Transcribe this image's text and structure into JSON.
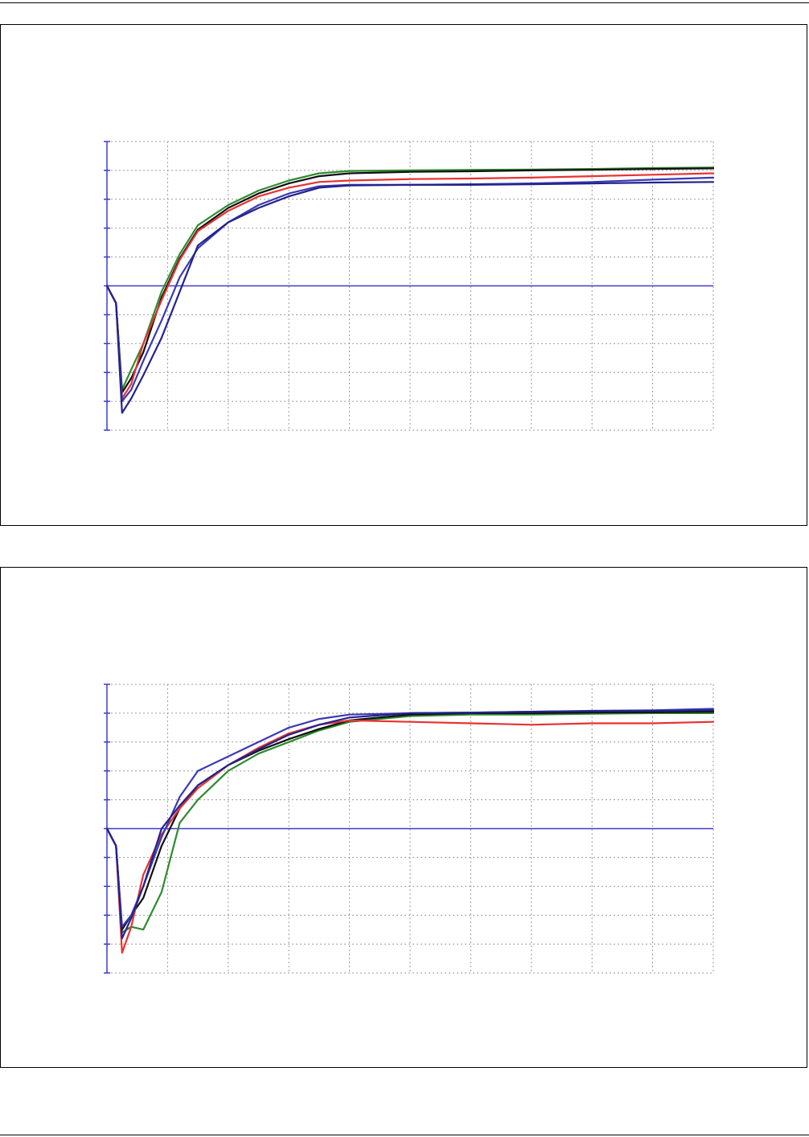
{
  "colors": {
    "blue": "#3a3ab4",
    "dark_blue": "#23238c",
    "red": "#e83232",
    "green": "#2e8b2e",
    "black": "#101010",
    "grid": "#9a9a9a",
    "axis": "#3c3ccc"
  },
  "chart_data": [
    {
      "type": "line",
      "title": "",
      "xlabel": "",
      "ylabel": "",
      "x_range": [
        0,
        10
      ],
      "y_range": [
        -5,
        5
      ],
      "zero_line": 0,
      "grid": true,
      "x_grid_lines": 10,
      "y_grid_lines": 10,
      "tick_labels": [],
      "series": [
        {
          "color": "green",
          "points": [
            [
              0,
              0
            ],
            [
              0.15,
              -0.6
            ],
            [
              0.25,
              -3.6
            ],
            [
              0.4,
              -2.9
            ],
            [
              0.6,
              -2.0
            ],
            [
              0.9,
              -0.2
            ],
            [
              1.2,
              1.1
            ],
            [
              1.5,
              2.1
            ],
            [
              2,
              2.8
            ],
            [
              2.5,
              3.3
            ],
            [
              3,
              3.65
            ],
            [
              3.5,
              3.9
            ],
            [
              4,
              3.98
            ],
            [
              5,
              4.0
            ],
            [
              6,
              4.02
            ],
            [
              7,
              4.03
            ],
            [
              8,
              4.05
            ],
            [
              9,
              4.08
            ],
            [
              10,
              4.1
            ]
          ]
        },
        {
          "color": "black",
          "points": [
            [
              0,
              0
            ],
            [
              0.15,
              -0.6
            ],
            [
              0.25,
              -3.7
            ],
            [
              0.4,
              -3.2
            ],
            [
              0.6,
              -2.3
            ],
            [
              0.9,
              -0.4
            ],
            [
              1.2,
              0.95
            ],
            [
              1.5,
              1.95
            ],
            [
              2,
              2.7
            ],
            [
              2.5,
              3.2
            ],
            [
              3,
              3.55
            ],
            [
              3.5,
              3.8
            ],
            [
              4,
              3.9
            ],
            [
              5,
              3.95
            ],
            [
              6,
              3.97
            ],
            [
              7,
              4.0
            ],
            [
              8,
              4.02
            ],
            [
              9,
              4.05
            ],
            [
              10,
              4.07
            ]
          ]
        },
        {
          "color": "red",
          "points": [
            [
              0,
              0
            ],
            [
              0.15,
              -0.6
            ],
            [
              0.25,
              -3.9
            ],
            [
              0.4,
              -3.4
            ],
            [
              0.6,
              -2.0
            ],
            [
              0.9,
              -0.5
            ],
            [
              1.2,
              0.9
            ],
            [
              1.5,
              1.9
            ],
            [
              2,
              2.6
            ],
            [
              2.5,
              3.1
            ],
            [
              3,
              3.4
            ],
            [
              3.5,
              3.6
            ],
            [
              4,
              3.65
            ],
            [
              5,
              3.7
            ],
            [
              6,
              3.72
            ],
            [
              7,
              3.75
            ],
            [
              8,
              3.8
            ],
            [
              9,
              3.85
            ],
            [
              10,
              3.9
            ]
          ]
        },
        {
          "color": "blue",
          "points": [
            [
              0,
              0
            ],
            [
              0.15,
              -0.6
            ],
            [
              0.25,
              -4.0
            ],
            [
              0.4,
              -3.6
            ],
            [
              0.6,
              -2.6
            ],
            [
              0.9,
              -1.2
            ],
            [
              1.2,
              0.3
            ],
            [
              1.5,
              1.3
            ],
            [
              2,
              2.2
            ],
            [
              2.5,
              2.8
            ],
            [
              3,
              3.2
            ],
            [
              3.5,
              3.45
            ],
            [
              4,
              3.5
            ],
            [
              5,
              3.5
            ],
            [
              6,
              3.52
            ],
            [
              7,
              3.55
            ],
            [
              8,
              3.6
            ],
            [
              9,
              3.68
            ],
            [
              10,
              3.75
            ]
          ]
        },
        {
          "color": "dark_blue",
          "points": [
            [
              0,
              0
            ],
            [
              0.15,
              -0.6
            ],
            [
              0.25,
              -4.4
            ],
            [
              0.4,
              -3.9
            ],
            [
              0.6,
              -3.1
            ],
            [
              0.9,
              -1.8
            ],
            [
              1.2,
              -0.2
            ],
            [
              1.5,
              1.4
            ],
            [
              2,
              2.2
            ],
            [
              2.5,
              2.7
            ],
            [
              3,
              3.1
            ],
            [
              3.5,
              3.4
            ],
            [
              4,
              3.48
            ],
            [
              5,
              3.5
            ],
            [
              6,
              3.5
            ],
            [
              7,
              3.52
            ],
            [
              8,
              3.55
            ],
            [
              9,
              3.58
            ],
            [
              10,
              3.6
            ]
          ]
        }
      ]
    },
    {
      "type": "line",
      "title": "",
      "xlabel": "",
      "ylabel": "",
      "x_range": [
        0,
        10
      ],
      "y_range": [
        -5,
        5
      ],
      "zero_line": 0,
      "grid": true,
      "x_grid_lines": 10,
      "y_grid_lines": 10,
      "tick_labels": [],
      "series": [
        {
          "color": "green",
          "points": [
            [
              0,
              0
            ],
            [
              0.15,
              -0.6
            ],
            [
              0.25,
              -3.6
            ],
            [
              0.4,
              -3.4
            ],
            [
              0.6,
              -3.5
            ],
            [
              0.9,
              -2.2
            ],
            [
              1.2,
              0.2
            ],
            [
              1.5,
              1.0
            ],
            [
              2,
              2.0
            ],
            [
              2.5,
              2.6
            ],
            [
              3,
              3.0
            ],
            [
              3.5,
              3.4
            ],
            [
              4,
              3.7
            ],
            [
              5,
              3.9
            ],
            [
              6,
              3.95
            ],
            [
              7,
              3.95
            ],
            [
              8,
              3.98
            ],
            [
              9,
              4.0
            ],
            [
              10,
              4.0
            ]
          ]
        },
        {
          "color": "black",
          "points": [
            [
              0,
              0
            ],
            [
              0.15,
              -0.6
            ],
            [
              0.25,
              -3.5
            ],
            [
              0.4,
              -3.0
            ],
            [
              0.6,
              -2.4
            ],
            [
              0.9,
              -0.6
            ],
            [
              1.2,
              0.7
            ],
            [
              1.5,
              1.5
            ],
            [
              2,
              2.2
            ],
            [
              2.5,
              2.7
            ],
            [
              3,
              3.1
            ],
            [
              3.5,
              3.45
            ],
            [
              4,
              3.75
            ],
            [
              5,
              3.95
            ],
            [
              6,
              4.0
            ],
            [
              7,
              4.0
            ],
            [
              8,
              4.02
            ],
            [
              9,
              4.03
            ],
            [
              10,
              4.05
            ]
          ]
        },
        {
          "color": "red",
          "points": [
            [
              0,
              0
            ],
            [
              0.15,
              -0.6
            ],
            [
              0.25,
              -4.3
            ],
            [
              0.4,
              -3.4
            ],
            [
              0.6,
              -1.6
            ],
            [
              0.9,
              -0.2
            ],
            [
              1.2,
              0.7
            ],
            [
              1.5,
              1.4
            ],
            [
              2,
              2.2
            ],
            [
              2.5,
              2.8
            ],
            [
              3,
              3.3
            ],
            [
              3.5,
              3.6
            ],
            [
              4,
              3.75
            ],
            [
              5,
              3.7
            ],
            [
              6,
              3.65
            ],
            [
              7,
              3.6
            ],
            [
              8,
              3.65
            ],
            [
              9,
              3.65
            ],
            [
              10,
              3.7
            ]
          ]
        },
        {
          "color": "blue",
          "points": [
            [
              0,
              0
            ],
            [
              0.15,
              -0.6
            ],
            [
              0.25,
              -3.4
            ],
            [
              0.4,
              -3.0
            ],
            [
              0.6,
              -2.0
            ],
            [
              0.9,
              -0.3
            ],
            [
              1.2,
              1.1
            ],
            [
              1.5,
              2.0
            ],
            [
              2,
              2.5
            ],
            [
              2.5,
              3.0
            ],
            [
              3,
              3.5
            ],
            [
              3.5,
              3.8
            ],
            [
              4,
              3.95
            ],
            [
              5,
              4.0
            ],
            [
              6,
              4.02
            ],
            [
              7,
              4.05
            ],
            [
              8,
              4.08
            ],
            [
              9,
              4.1
            ],
            [
              10,
              4.15
            ]
          ]
        },
        {
          "color": "dark_blue",
          "points": [
            [
              0,
              0
            ],
            [
              0.15,
              -0.6
            ],
            [
              0.25,
              -3.8
            ],
            [
              0.4,
              -3.1
            ],
            [
              0.6,
              -2.0
            ],
            [
              0.9,
              0.0
            ],
            [
              1.2,
              0.8
            ],
            [
              1.5,
              1.5
            ],
            [
              2,
              2.2
            ],
            [
              2.5,
              2.75
            ],
            [
              3,
              3.25
            ],
            [
              3.5,
              3.6
            ],
            [
              4,
              3.85
            ],
            [
              5,
              4.0
            ],
            [
              6,
              4.02
            ],
            [
              7,
              4.05
            ],
            [
              8,
              4.07
            ],
            [
              9,
              4.08
            ],
            [
              10,
              4.1
            ]
          ]
        }
      ]
    }
  ]
}
